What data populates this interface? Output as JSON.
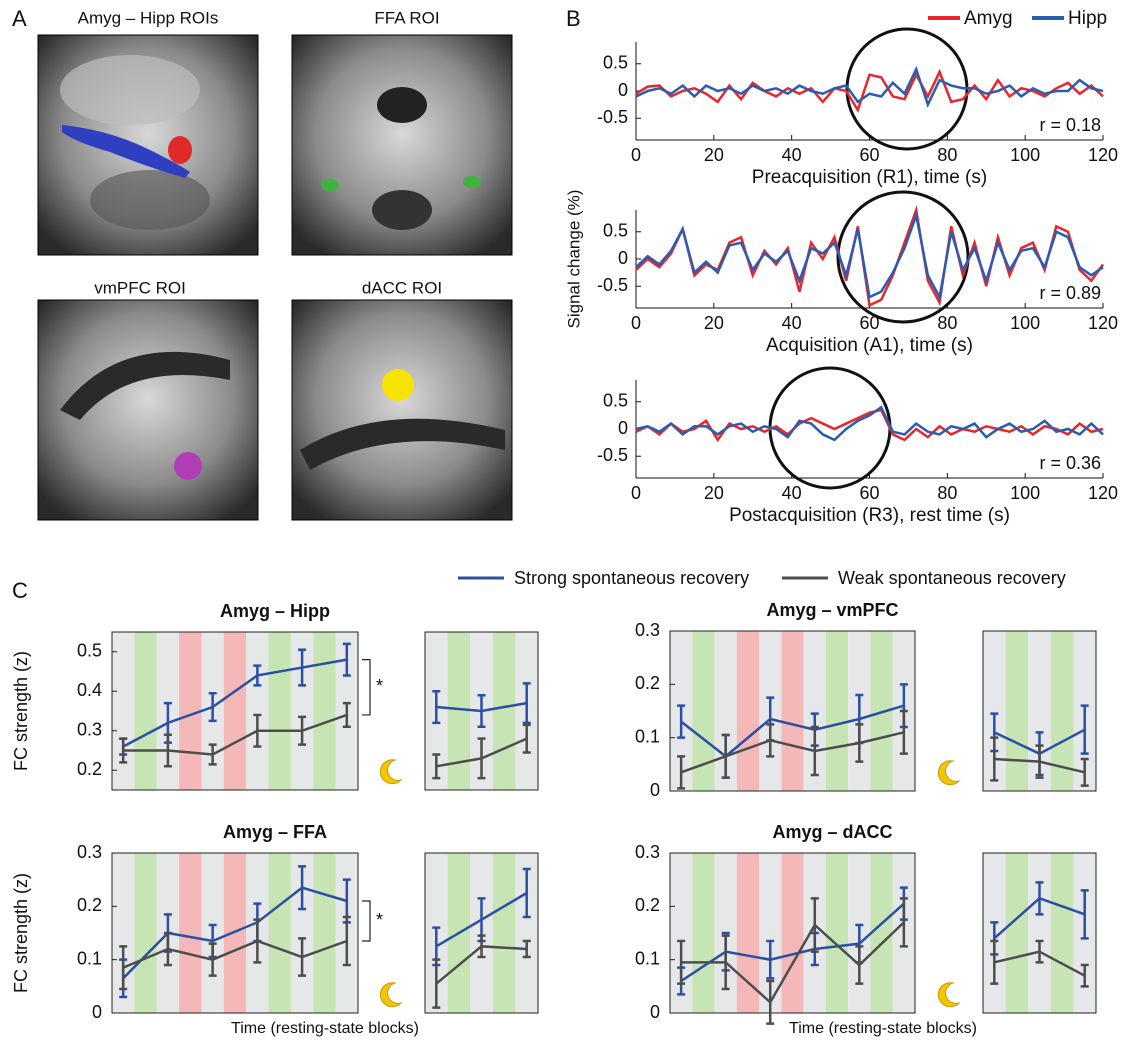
{
  "panel_labels": [
    "A",
    "B",
    "C"
  ],
  "panel_a": [
    {
      "title": "Amyg – Hipp ROIs"
    },
    {
      "title": "FFA ROI"
    },
    {
      "title": "vmPFC ROI"
    },
    {
      "title": "dACC ROI"
    }
  ],
  "chart_data": [
    {
      "type": "line",
      "x": [
        0,
        3,
        6,
        9,
        12,
        15,
        18,
        21,
        24,
        27,
        30,
        33,
        36,
        39,
        42,
        45,
        48,
        51,
        54,
        57,
        60,
        63,
        66,
        69,
        72,
        75,
        78,
        81,
        84,
        87,
        90,
        93,
        96,
        99,
        102,
        105,
        108,
        111,
        114,
        117,
        120
      ],
      "series": [
        {
          "name": "Amyg",
          "color": "#e8262b",
          "values": [
            -0.05,
            0.08,
            0.1,
            -0.1,
            0.0,
            0.05,
            -0.05,
            -0.2,
            0.1,
            -0.15,
            0.15,
            0.0,
            -0.1,
            0.05,
            -0.05,
            0.05,
            -0.2,
            0.05,
            0.0,
            -0.35,
            0.3,
            0.25,
            -0.1,
            -0.15,
            0.3,
            -0.1,
            0.35,
            -0.2,
            -0.15,
            0.1,
            -0.15,
            0.2,
            -0.1,
            0.05,
            0.0,
            -0.1,
            0.05,
            0.15,
            -0.05,
            0.1,
            -0.1
          ]
        },
        {
          "name": "Hipp",
          "color": "#2a5db0",
          "values": [
            -0.1,
            0.0,
            0.05,
            -0.05,
            0.1,
            -0.1,
            0.1,
            0.0,
            0.05,
            -0.05,
            0.1,
            0.0,
            0.05,
            -0.05,
            0.1,
            0.0,
            -0.05,
            0.05,
            0.1,
            -0.2,
            -0.05,
            -0.1,
            0.15,
            -0.05,
            0.4,
            -0.25,
            0.2,
            0.1,
            0.05,
            0.05,
            -0.05,
            0.0,
            0.1,
            -0.1,
            0.05,
            -0.05,
            0.0,
            0.0,
            0.2,
            0.05,
            0.0
          ]
        }
      ],
      "xlim": [
        0,
        120
      ],
      "xticks": [
        0,
        20,
        40,
        60,
        80,
        100,
        120
      ],
      "ylim": [
        -0.9,
        0.9
      ],
      "yticks": [
        0.5,
        0,
        -0.5
      ],
      "xlabel": "Preacquisition (R1), time (s)",
      "annotation": "r = 0.18"
    },
    {
      "type": "line",
      "x": [
        0,
        3,
        6,
        9,
        12,
        15,
        18,
        21,
        24,
        27,
        30,
        33,
        36,
        39,
        42,
        45,
        48,
        51,
        54,
        57,
        60,
        63,
        66,
        69,
        72,
        75,
        78,
        81,
        84,
        87,
        90,
        93,
        96,
        99,
        102,
        105,
        108,
        111,
        114,
        117,
        120
      ],
      "series": [
        {
          "color": "#e8262b",
          "values": [
            -0.2,
            0.0,
            -0.15,
            0.1,
            0.55,
            -0.3,
            -0.1,
            -0.2,
            0.3,
            0.4,
            -0.3,
            0.15,
            -0.1,
            0.2,
            -0.6,
            0.3,
            0.0,
            0.4,
            -0.4,
            0.6,
            -0.85,
            -0.75,
            -0.3,
            0.3,
            0.9,
            -0.4,
            -0.8,
            0.6,
            -0.3,
            0.3,
            -0.5,
            0.4,
            -0.3,
            0.2,
            0.3,
            -0.2,
            0.6,
            0.5,
            -0.2,
            -0.4,
            -0.1
          ]
        },
        {
          "color": "#2a5db0",
          "values": [
            -0.15,
            0.05,
            -0.1,
            0.15,
            0.55,
            -0.25,
            -0.05,
            -0.25,
            0.25,
            0.3,
            -0.2,
            0.1,
            -0.05,
            0.15,
            -0.4,
            0.2,
            0.1,
            0.3,
            -0.3,
            0.55,
            -0.7,
            -0.6,
            -0.25,
            0.2,
            0.8,
            -0.3,
            -0.7,
            0.5,
            -0.2,
            0.2,
            -0.4,
            0.3,
            -0.2,
            0.15,
            0.2,
            -0.15,
            0.5,
            0.4,
            -0.15,
            -0.3,
            -0.15
          ]
        }
      ],
      "xlim": [
        0,
        120
      ],
      "xticks": [
        0,
        20,
        40,
        60,
        80,
        100,
        120
      ],
      "ylim": [
        -0.9,
        0.9
      ],
      "yticks": [
        0.5,
        0,
        -0.5
      ],
      "ylabel": "Signal change (%)",
      "xlabel": "Acquisition (A1), time (s)",
      "annotation": "r = 0.89"
    },
    {
      "type": "line",
      "x": [
        0,
        3,
        6,
        9,
        12,
        15,
        18,
        21,
        24,
        27,
        30,
        33,
        36,
        39,
        42,
        45,
        48,
        51,
        54,
        57,
        60,
        63,
        66,
        69,
        72,
        75,
        78,
        81,
        84,
        87,
        90,
        93,
        96,
        99,
        102,
        105,
        108,
        111,
        114,
        117,
        120
      ],
      "series": [
        {
          "color": "#e8262b",
          "values": [
            -0.05,
            0.05,
            -0.1,
            0.1,
            -0.05,
            0.0,
            0.15,
            -0.2,
            0.1,
            0.0,
            0.05,
            -0.05,
            0.05,
            -0.1,
            0.1,
            0.2,
            0.1,
            0.0,
            0.1,
            0.2,
            0.3,
            0.35,
            -0.1,
            -0.2,
            0.0,
            -0.15,
            0.05,
            -0.1,
            0.0,
            -0.05,
            0.05,
            0.0,
            -0.05,
            0.05,
            -0.1,
            0.05,
            0.0,
            -0.1,
            0.1,
            -0.05,
            0.0
          ]
        },
        {
          "color": "#2a5db0",
          "values": [
            0.0,
            0.05,
            -0.05,
            0.1,
            -0.1,
            0.05,
            0.05,
            -0.1,
            0.05,
            0.1,
            -0.05,
            0.05,
            0.0,
            -0.15,
            0.15,
            0.1,
            -0.1,
            -0.2,
            0.0,
            0.15,
            0.25,
            0.4,
            -0.05,
            -0.1,
            0.1,
            -0.05,
            -0.1,
            0.05,
            0.0,
            0.1,
            -0.15,
            0.0,
            0.1,
            -0.05,
            0.0,
            0.15,
            -0.05,
            0.0,
            -0.1,
            0.1,
            -0.1
          ]
        }
      ],
      "xlim": [
        0,
        120
      ],
      "xticks": [
        0,
        20,
        40,
        60,
        80,
        100,
        120
      ],
      "ylim": [
        -0.9,
        0.9
      ],
      "yticks": [
        0.5,
        0,
        -0.5
      ],
      "xlabel": "Postacquisition (R3), rest time (s)",
      "annotation": "r = 0.36"
    },
    {
      "type": "errorbar",
      "title": "Amyg – Hipp",
      "ylabel": "FC strength (z)",
      "categories": [
        null,
        null,
        null,
        null,
        null,
        null,
        null,
        null,
        null,
        null
      ],
      "series": [
        {
          "name": "Strong spontaneous recovery",
          "color": "#2b4fa3",
          "values": [
            0.26,
            0.32,
            0.36,
            0.44,
            0.46,
            0.48,
            null,
            0.36,
            0.35,
            0.37
          ],
          "errors": [
            0.02,
            0.05,
            0.035,
            0.025,
            0.045,
            0.04,
            null,
            0.04,
            0.04,
            0.05
          ]
        },
        {
          "name": "Weak spontaneous recovery",
          "color": "#4d4d4d",
          "values": [
            0.25,
            0.25,
            0.24,
            0.3,
            0.3,
            0.34,
            null,
            0.21,
            0.23,
            0.28
          ],
          "errors": [
            0.03,
            0.04,
            0.025,
            0.04,
            0.035,
            0.03,
            null,
            0.03,
            0.05,
            0.035
          ]
        }
      ],
      "ylim": [
        0.15,
        0.55
      ],
      "yticks": [
        0.2,
        0.3,
        0.4,
        0.5
      ],
      "annotation": "*"
    },
    {
      "type": "errorbar",
      "title": "Amyg – vmPFC",
      "categories": [
        null,
        null,
        null,
        null,
        null,
        null,
        null,
        null,
        null,
        null
      ],
      "series": [
        {
          "color": "#2b4fa3",
          "values": [
            0.13,
            0.065,
            0.135,
            0.115,
            0.135,
            0.16,
            null,
            0.11,
            0.07,
            0.115
          ],
          "errors": [
            0.03,
            0.04,
            0.04,
            0.03,
            0.045,
            0.04,
            null,
            0.035,
            0.04,
            0.045
          ]
        },
        {
          "color": "#4d4d4d",
          "values": [
            0.035,
            0.065,
            0.095,
            0.075,
            0.09,
            0.11,
            null,
            0.06,
            0.055,
            0.035
          ],
          "errors": [
            0.03,
            0.04,
            0.03,
            0.045,
            0.035,
            0.04,
            null,
            0.04,
            0.03,
            0.025
          ]
        }
      ],
      "ylim": [
        0,
        0.3
      ],
      "yticks": [
        0,
        0.1,
        0.2,
        0.3
      ]
    },
    {
      "type": "errorbar",
      "title": "Amyg – FFA",
      "ylabel": "FC strength (z)",
      "xlabel": "Time (resting-state blocks)",
      "categories": [
        null,
        null,
        null,
        null,
        null,
        null,
        null,
        null,
        null,
        null
      ],
      "series": [
        {
          "color": "#2b4fa3",
          "values": [
            0.065,
            0.15,
            0.135,
            0.17,
            0.235,
            0.21,
            null,
            0.125,
            0.175,
            0.225
          ],
          "errors": [
            0.035,
            0.035,
            0.03,
            0.035,
            0.04,
            0.04,
            null,
            0.035,
            0.04,
            0.045
          ]
        },
        {
          "color": "#4d4d4d",
          "values": [
            0.085,
            0.12,
            0.1,
            0.135,
            0.105,
            0.135,
            null,
            0.055,
            0.125,
            0.12
          ],
          "errors": [
            0.04,
            0.03,
            0.03,
            0.04,
            0.035,
            0.045,
            null,
            0.045,
            0.02,
            0.015
          ]
        }
      ],
      "ylim": [
        0,
        0.3
      ],
      "yticks": [
        0,
        0.1,
        0.2,
        0.3
      ],
      "annotation": "*"
    },
    {
      "type": "errorbar",
      "title": "Amyg – dACC",
      "xlabel": "Time (resting-state blocks)",
      "categories": [
        null,
        null,
        null,
        null,
        null,
        null,
        null,
        null,
        null,
        null
      ],
      "series": [
        {
          "color": "#2b4fa3",
          "values": [
            0.06,
            0.115,
            0.1,
            0.12,
            0.13,
            0.205,
            null,
            0.14,
            0.215,
            0.185
          ],
          "errors": [
            0.025,
            0.035,
            0.035,
            0.03,
            0.035,
            0.03,
            null,
            0.03,
            0.03,
            0.045
          ]
        },
        {
          "color": "#4d4d4d",
          "values": [
            0.095,
            0.095,
            0.02,
            0.165,
            0.09,
            0.17,
            null,
            0.095,
            0.115,
            0.07
          ],
          "errors": [
            0.04,
            0.05,
            0.04,
            0.05,
            0.035,
            0.045,
            null,
            0.04,
            0.02,
            0.02
          ]
        }
      ],
      "ylim": [
        0,
        0.3
      ],
      "yticks": [
        0,
        0.1,
        0.2,
        0.3
      ]
    }
  ]
}
